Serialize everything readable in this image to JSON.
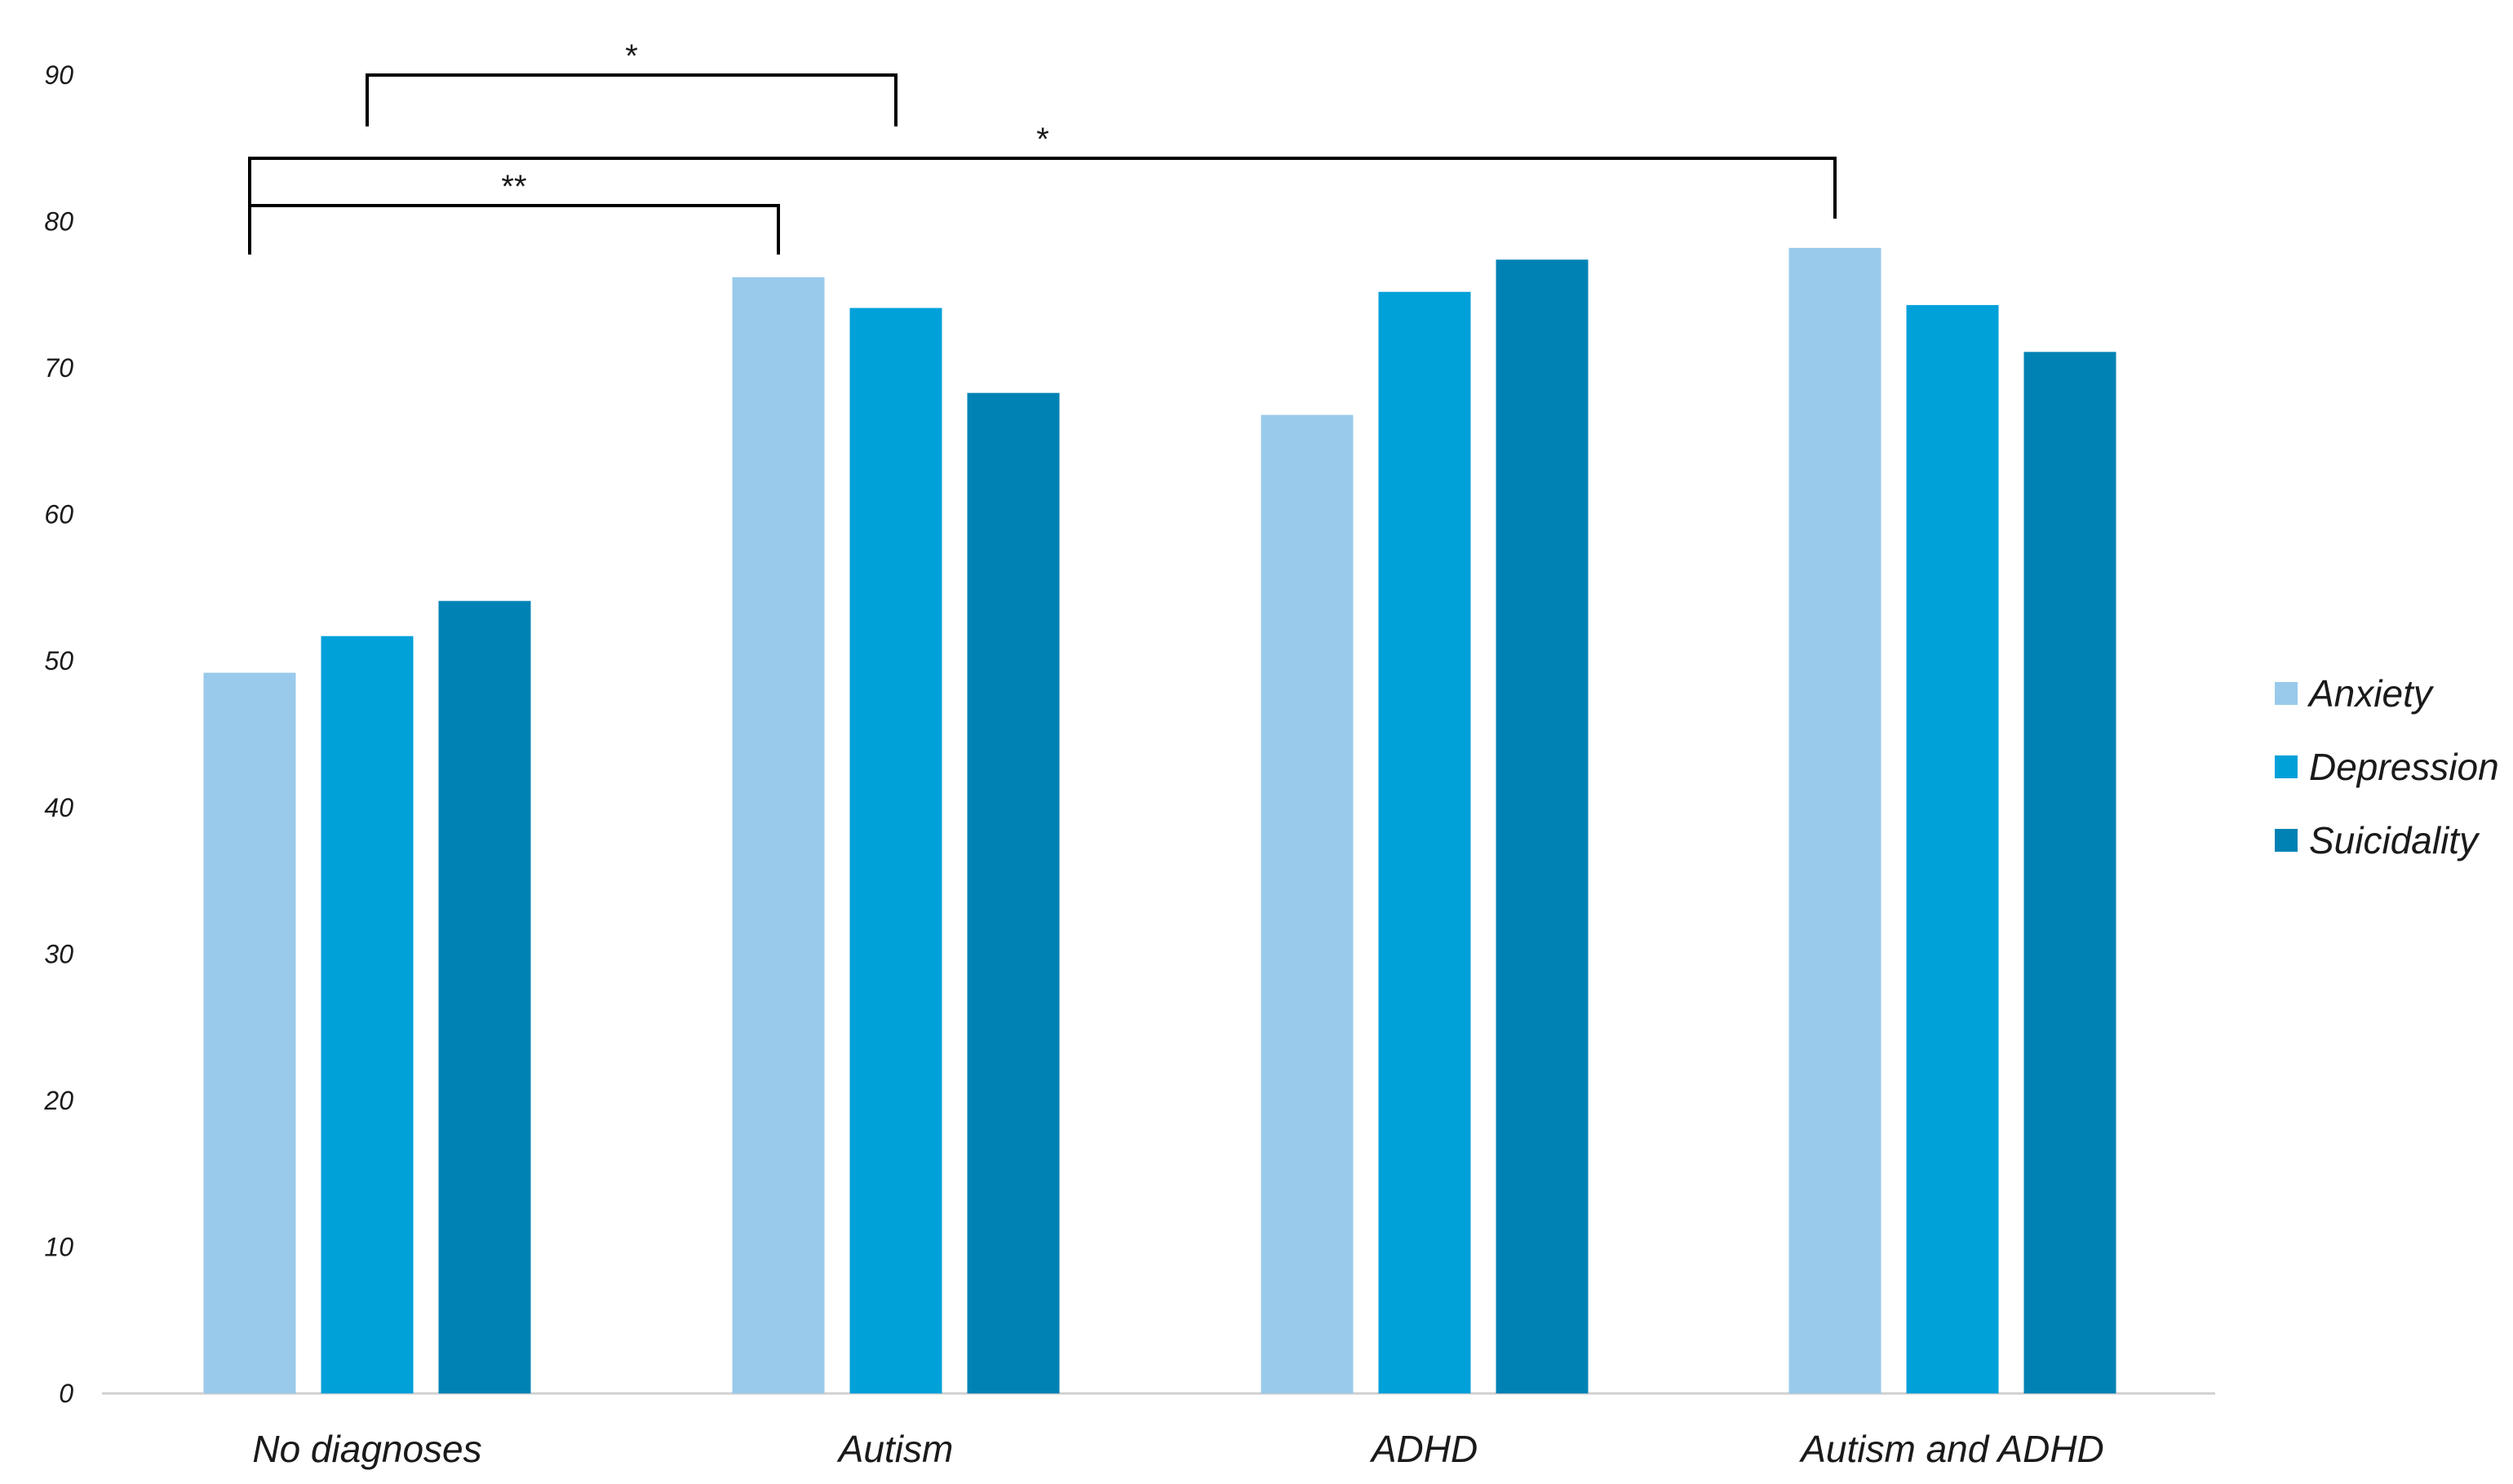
{
  "chart_data": {
    "type": "bar",
    "categories": [
      "No diagnoses",
      "Autism",
      "ADHD",
      "Autism and ADHD"
    ],
    "series": [
      {
        "name": "Anxiety",
        "color": "#99caeb",
        "values": [
          49.2,
          76.2,
          66.8,
          78.2
        ]
      },
      {
        "name": "Depression",
        "color": "#00a0d9",
        "values": [
          51.7,
          74.1,
          75.2,
          74.3
        ]
      },
      {
        "name": "Suicidality",
        "color": "#0082b4",
        "values": [
          54.1,
          68.3,
          77.4,
          71.1
        ]
      }
    ],
    "title": "",
    "xlabel": "",
    "ylabel": "",
    "ylim": [
      0,
      90
    ],
    "yticks": [
      0,
      10,
      20,
      30,
      40,
      50,
      60,
      70,
      80,
      90
    ],
    "grid": false,
    "legend_position": "right",
    "significance": [
      {
        "from": {
          "category": 0,
          "series": 1
        },
        "to": {
          "category": 1,
          "series": 1
        },
        "label": "*"
      },
      {
        "from": {
          "category": 0,
          "series": 0
        },
        "to": {
          "category": 3,
          "series": 0
        },
        "label": "*"
      },
      {
        "from": {
          "category": 0,
          "series": 0
        },
        "to": {
          "category": 1,
          "series": 0
        },
        "label": "**"
      }
    ]
  }
}
